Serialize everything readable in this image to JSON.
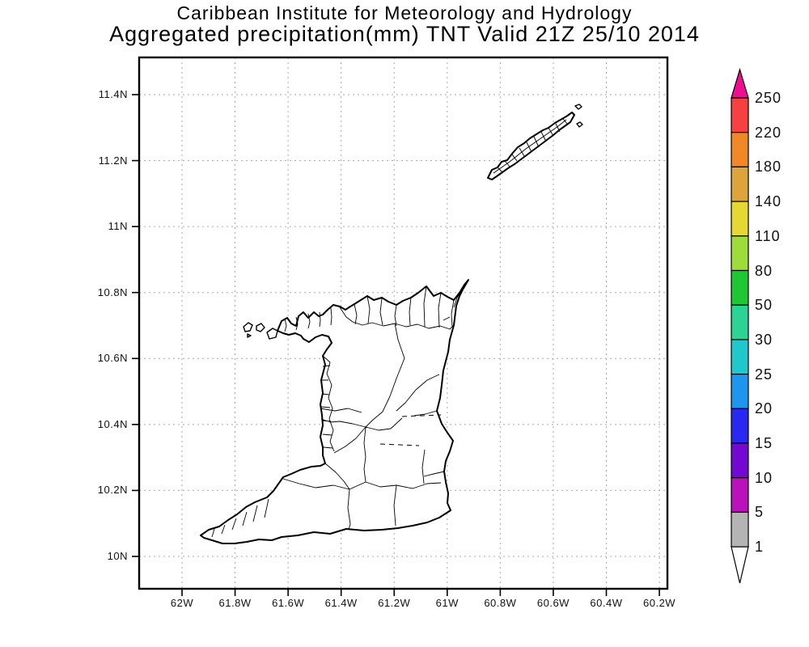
{
  "title": {
    "line1": "Caribbean Institute for Meteorology and Hydrology",
    "line2": "Aggregated precipitation(mm) TNT Valid 21Z 25/10 2014"
  },
  "map": {
    "x_tick_labels": [
      "62W",
      "61.8W",
      "61.6W",
      "61.4W",
      "61.2W",
      "61W",
      "60.8W",
      "60.6W",
      "60.4W",
      "60.2W"
    ],
    "y_tick_labels": [
      "11.4N",
      "11.2N",
      "11N",
      "10.8N",
      "10.6N",
      "10.4N",
      "10.2N",
      "10N"
    ],
    "frame_color": "#000000",
    "gridline_color": "#aaaaaa",
    "coastline_color": "#000000"
  },
  "colorbar": {
    "tick_labels_top_to_bottom": [
      "250",
      "220",
      "180",
      "140",
      "110",
      "80",
      "50",
      "30",
      "25",
      "20",
      "15",
      "10",
      "5",
      "1"
    ],
    "values_mm_top_to_bottom": [
      250,
      220,
      180,
      140,
      110,
      80,
      50,
      30,
      25,
      20,
      15,
      10,
      5,
      1
    ],
    "segment_colors_top_to_bottom": [
      "#f94040",
      "#f08828",
      "#dda43c",
      "#e6d832",
      "#9edc3a",
      "#1ec832",
      "#2bd495",
      "#1fc8cd",
      "#1e96f0",
      "#2828f0",
      "#7208d2",
      "#bb10bb",
      "#b4b4b4"
    ],
    "arrow_top_color": "#ee0e90",
    "arrow_bottom_color": "#ffffff",
    "outline_color": "#000000",
    "units": "mm"
  }
}
